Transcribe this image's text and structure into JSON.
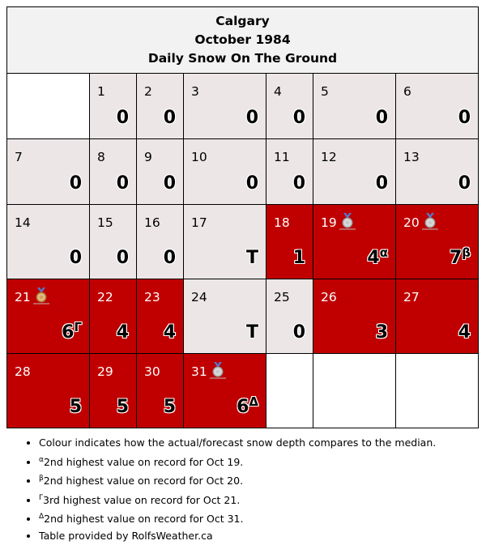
{
  "title": {
    "line1": "Calgary",
    "line2": "October 1984",
    "line3": "Daily Snow On The Ground"
  },
  "colors": {
    "above_median": "#c00000",
    "normal": "#ece6e7",
    "header": "#f2f2f2"
  },
  "weeks": [
    [
      {
        "empty": true
      },
      {
        "day": "1",
        "value": "0"
      },
      {
        "day": "2",
        "value": "0"
      },
      {
        "day": "3",
        "value": "0"
      },
      {
        "day": "4",
        "value": "0"
      },
      {
        "day": "5",
        "value": "0"
      },
      {
        "day": "6",
        "value": "0"
      }
    ],
    [
      {
        "day": "7",
        "value": "0"
      },
      {
        "day": "8",
        "value": "0"
      },
      {
        "day": "9",
        "value": "0"
      },
      {
        "day": "10",
        "value": "0"
      },
      {
        "day": "11",
        "value": "0"
      },
      {
        "day": "12",
        "value": "0"
      },
      {
        "day": "13",
        "value": "0"
      }
    ],
    [
      {
        "day": "14",
        "value": "0"
      },
      {
        "day": "15",
        "value": "0"
      },
      {
        "day": "16",
        "value": "0"
      },
      {
        "day": "17",
        "value": "T"
      },
      {
        "day": "18",
        "value": "1",
        "above": true
      },
      {
        "day": "19",
        "value": "4",
        "mark": "α",
        "above": true,
        "medal": "silver-medal-icon"
      },
      {
        "day": "20",
        "value": "7",
        "mark": "β",
        "above": true,
        "medal": "silver-medal-icon"
      }
    ],
    [
      {
        "day": "21",
        "value": "6",
        "mark": "Γ",
        "above": true,
        "medal": "bronze-medal-icon"
      },
      {
        "day": "22",
        "value": "4",
        "above": true
      },
      {
        "day": "23",
        "value": "4",
        "above": true
      },
      {
        "day": "24",
        "value": "T"
      },
      {
        "day": "25",
        "value": "0"
      },
      {
        "day": "26",
        "value": "3",
        "above": true
      },
      {
        "day": "27",
        "value": "4",
        "above": true
      }
    ],
    [
      {
        "day": "28",
        "value": "5",
        "above": true
      },
      {
        "day": "29",
        "value": "5",
        "above": true
      },
      {
        "day": "30",
        "value": "5",
        "above": true
      },
      {
        "day": "31",
        "value": "6",
        "mark": "Δ",
        "above": true,
        "medal": "silver-medal-icon"
      },
      {
        "empty": true
      },
      {
        "empty": true
      },
      {
        "empty": true
      }
    ]
  ],
  "notes": [
    {
      "mark": "",
      "text": "Colour indicates how the actual/forecast snow depth compares to the median."
    },
    {
      "mark": "α",
      "text": "2nd highest value on record for Oct 19."
    },
    {
      "mark": "β",
      "text": "2nd highest value on record for Oct 20."
    },
    {
      "mark": "Γ",
      "text": "3rd highest value on record for Oct 21."
    },
    {
      "mark": "Δ",
      "text": "2nd highest value on record for Oct 31."
    },
    {
      "mark": "",
      "text": "Table provided by RolfsWeather.ca"
    }
  ]
}
